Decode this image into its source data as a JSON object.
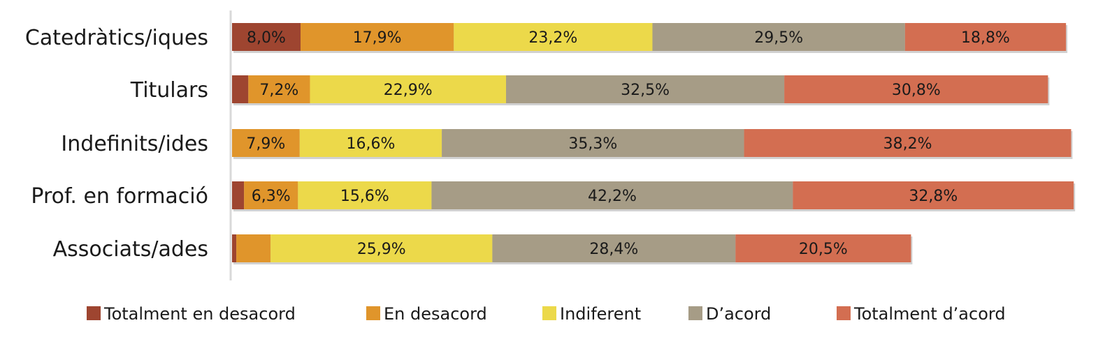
{
  "chart_data": {
    "type": "bar",
    "orientation": "horizontal",
    "stacked": true,
    "categories": [
      "Catedràtics/iques",
      "Titulars",
      "Indefinits/ides",
      "Prof. en formació",
      "Associats/ades"
    ],
    "series": [
      {
        "name": "Totalment en desacord",
        "color": "#9e4530",
        "values": [
          8.0,
          1.9,
          0.0,
          1.4,
          0.5
        ],
        "labels": [
          "8,0%",
          "",
          "",
          "",
          ""
        ]
      },
      {
        "name": "En desacord",
        "color": "#e0952b",
        "values": [
          17.9,
          7.2,
          7.9,
          6.3,
          4.0
        ],
        "labels": [
          "17,9%",
          "7,2%",
          "7,9%",
          "6,3%",
          ""
        ]
      },
      {
        "name": "Indiferent",
        "color": "#ecd94a",
        "values": [
          23.2,
          22.9,
          16.6,
          15.6,
          25.9
        ],
        "labels": [
          "23,2%",
          "22,9%",
          "16,6%",
          "15,6%",
          "25,9%"
        ]
      },
      {
        "name": "D’acord",
        "color": "#a69c86",
        "values": [
          29.5,
          32.5,
          35.3,
          42.2,
          28.4
        ],
        "labels": [
          "29,5%",
          "32,5%",
          "35,3%",
          "42,2%",
          "28,4%"
        ]
      },
      {
        "name": "Totalment d’acord",
        "color": "#d36e51",
        "values": [
          18.8,
          30.8,
          38.2,
          32.8,
          20.5
        ],
        "labels": [
          "18,8%",
          "30,8%",
          "38,2%",
          "32,8%",
          "20,5%"
        ]
      }
    ],
    "legend": "bottom",
    "grid": false
  }
}
